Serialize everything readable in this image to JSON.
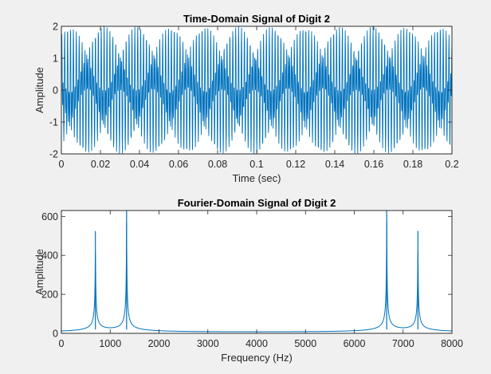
{
  "chart_data": [
    {
      "type": "line",
      "title": "Time-Domain Signal of Digit 2",
      "xlabel": "Time (sec)",
      "ylabel": "Amplitude",
      "xlim": [
        0,
        0.2
      ],
      "ylim": [
        -2,
        2
      ],
      "xticks": [
        0,
        0.02,
        0.04,
        0.06,
        0.08,
        0.1,
        0.12,
        0.14,
        0.16,
        0.18,
        0.2
      ],
      "xtick_labels": [
        "0",
        "0.02",
        "0.04",
        "0.06",
        "0.08",
        "0.1",
        "0.12",
        "0.14",
        "0.16",
        "0.18",
        "0.2"
      ],
      "yticks": [
        -2,
        -1,
        0,
        1,
        2
      ],
      "ytick_labels": [
        "-2",
        "-1",
        "0",
        "1",
        "2"
      ],
      "grid": false,
      "series": [
        {
          "color": "#0072bd",
          "signal": {
            "form": "sum of sinusoids sampled at 8000 Hz",
            "components": [
              {
                "frequency_hz": 697,
                "amplitude": 1
              },
              {
                "frequency_hz": 1336,
                "amplitude": 1
              }
            ],
            "sample_rate_hz": 8000
          }
        }
      ]
    },
    {
      "type": "line",
      "title": "Fourier-Domain Signal of Digit 2",
      "xlabel": "Frequency (Hz)",
      "ylabel": "Amplitude",
      "xlim": [
        0,
        8000
      ],
      "ylim": [
        0,
        630
      ],
      "xticks": [
        0,
        1000,
        2000,
        3000,
        4000,
        5000,
        6000,
        7000,
        8000
      ],
      "xtick_labels": [
        "0",
        "1000",
        "2000",
        "3000",
        "4000",
        "5000",
        "6000",
        "7000",
        "8000"
      ],
      "yticks": [
        0,
        200,
        400,
        600
      ],
      "ytick_labels": [
        "0",
        "200",
        "400",
        "600"
      ],
      "grid": false,
      "series": [
        {
          "color": "#0072bd",
          "peaks": [
            {
              "x": 697,
              "y": 525
            },
            {
              "x": 1336,
              "y": 640
            },
            {
              "x": 6664,
              "y": 640
            },
            {
              "x": 7303,
              "y": 525
            }
          ]
        }
      ]
    }
  ]
}
